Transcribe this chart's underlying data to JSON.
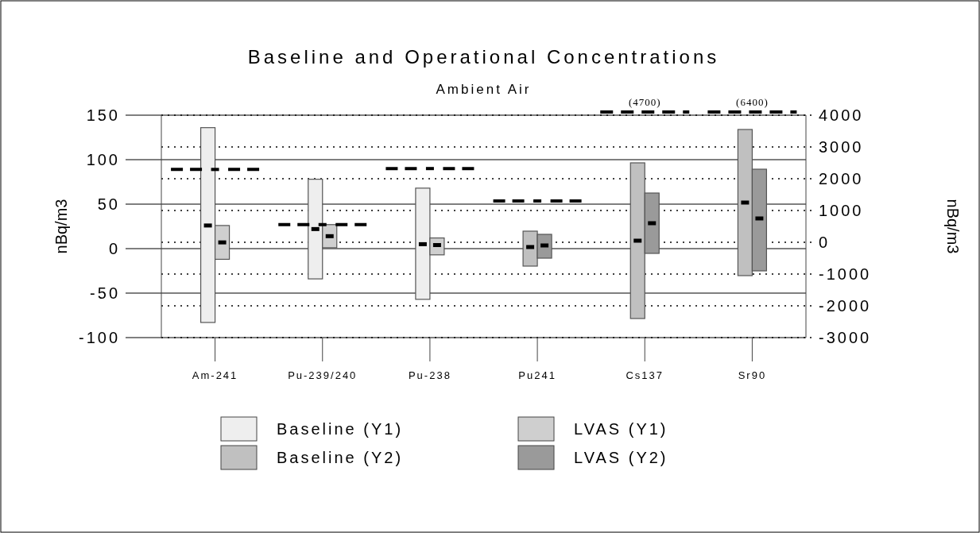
{
  "chart_data": {
    "type": "bar",
    "title": "Baseline and Operational Concentrations",
    "subtitle": "Ambient Air",
    "ylabel": "nBq/m3",
    "y2label": "nBq/m3",
    "categories": [
      "Am-241",
      "Pu-239/240",
      "Pu-238",
      "Pu241",
      "Cs137",
      "Sr90"
    ],
    "ylim": [
      -100,
      150
    ],
    "yticks": [
      -100,
      -50,
      0,
      50,
      100,
      150
    ],
    "y2lim": [
      -3000,
      4000
    ],
    "y2ticks": [
      -3000,
      -2000,
      -1000,
      0,
      1000,
      2000,
      3000,
      4000
    ],
    "grid": true,
    "legend": "bottom",
    "series": [
      {
        "name": "Baseline (Y1)",
        "color": "#eeeeee",
        "base": [
          -83,
          -34,
          -57,
          null,
          null,
          null
        ],
        "values": [
          219,
          112,
          125,
          null,
          null,
          null
        ]
      },
      {
        "name": "LVAS (Y1)",
        "color": "#cfcfcf",
        "base": [
          -12,
          1,
          -7,
          null,
          null,
          null
        ],
        "values": [
          38,
          26,
          19,
          null,
          null,
          null
        ]
      },
      {
        "name": "Baseline (Y2)",
        "axis": "y2",
        "color": "#c0c0c0",
        "base": [
          null,
          null,
          null,
          -750,
          -2400,
          -1050
        ],
        "values": [
          null,
          null,
          null,
          1100,
          4900,
          4600
        ]
      },
      {
        "name": "LVAS (Y2)",
        "axis": "y2",
        "color": "#9a9a9a",
        "base": [
          null,
          null,
          null,
          -500,
          -350,
          -900
        ],
        "values": [
          null,
          null,
          null,
          750,
          1900,
          3200
        ]
      },
      {
        "type": "scatter",
        "color": "#000000",
        "values": [
          26,
          22,
          5,
          null,
          null,
          null
        ]
      },
      {
        "type": "scatter",
        "color": "#000000",
        "values": [
          7,
          14,
          4,
          null,
          null,
          null
        ]
      },
      {
        "type": "scatter",
        "axis": "y2",
        "color": "#000000",
        "values": [
          null,
          null,
          null,
          -150,
          50,
          1250
        ]
      },
      {
        "type": "scatter",
        "axis": "y2",
        "color": "#000000",
        "values": [
          null,
          null,
          null,
          -100,
          600,
          750
        ]
      },
      {
        "type": "scatter",
        "color": "#000000",
        "line_style": "dashed",
        "values": [
          89,
          27,
          90,
          null,
          null,
          null
        ]
      },
      {
        "type": "scatter",
        "color": "#000000",
        "line_style": "dashed",
        "axis": "y2",
        "values": [
          null,
          null,
          null,
          1300,
          null,
          null
        ]
      }
    ],
    "annotations": [
      "(4700)",
      "(6400)"
    ]
  }
}
